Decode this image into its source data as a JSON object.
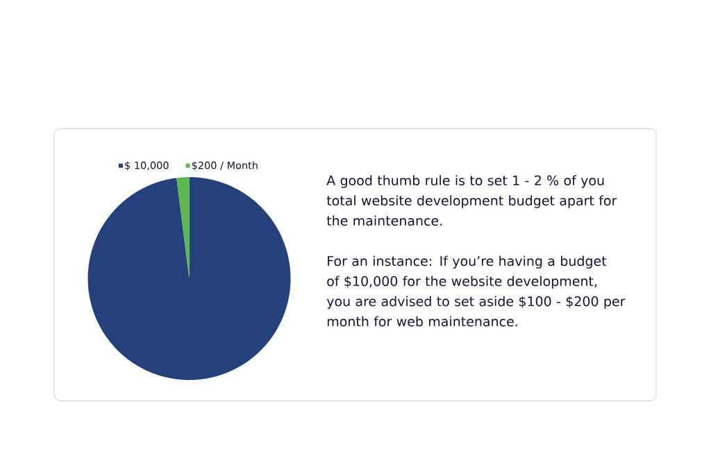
{
  "chart_data": {
    "type": "pie",
    "categories": [
      "$ 10,000",
      "$200 / Month"
    ],
    "values": [
      98,
      2
    ],
    "colors": [
      "#24417c",
      "#5cb84e"
    ],
    "legend": "top",
    "annotations": [
      "A good thumb rule is to set 1 - 2 % of you total website development budget apart for the maintenance.",
      "For an instance: If you’re having a budget of $10,000 for the website development, you are advised to set aside $100 - $200 per month for web maintenance."
    ]
  }
}
